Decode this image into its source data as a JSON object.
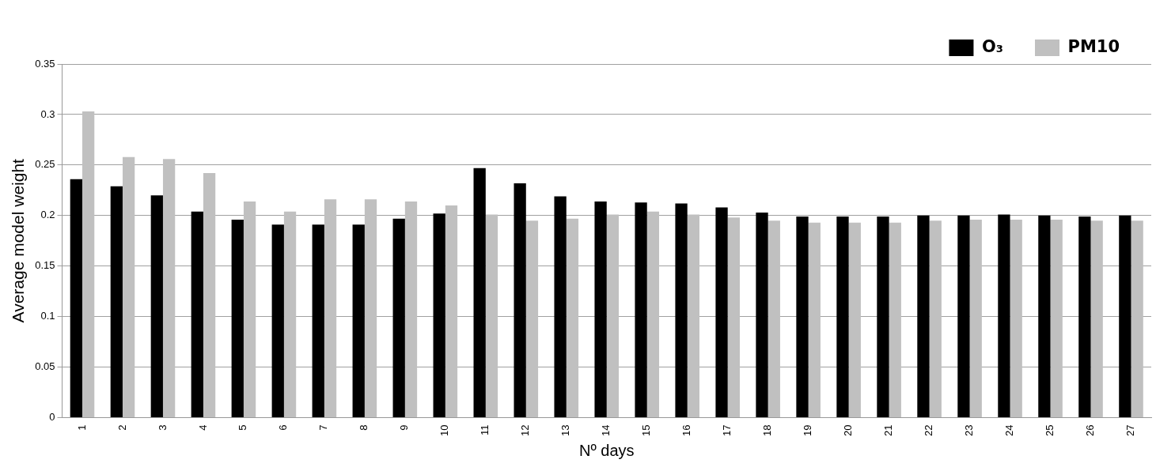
{
  "chart_data": {
    "type": "bar",
    "xlabel": "Nº days",
    "ylabel": "Average model weight",
    "categories": [
      "1",
      "2",
      "3",
      "4",
      "5",
      "6",
      "7",
      "8",
      "9",
      "10",
      "11",
      "12",
      "13",
      "14",
      "15",
      "16",
      "17",
      "18",
      "19",
      "20",
      "21",
      "22",
      "23",
      "24",
      "25",
      "26",
      "27"
    ],
    "series": [
      {
        "name": "O₃",
        "color": "#000000",
        "values": [
          0.236,
          0.229,
          0.22,
          0.204,
          0.196,
          0.191,
          0.191,
          0.191,
          0.197,
          0.202,
          0.247,
          0.232,
          0.219,
          0.214,
          0.213,
          0.212,
          0.208,
          0.203,
          0.199,
          0.199,
          0.199,
          0.2,
          0.2,
          0.201,
          0.2,
          0.199,
          0.2
        ]
      },
      {
        "name": "PM10",
        "color": "#c0c0c0",
        "values": [
          0.303,
          0.258,
          0.256,
          0.242,
          0.214,
          0.204,
          0.216,
          0.216,
          0.214,
          0.21,
          0.201,
          0.195,
          0.197,
          0.201,
          0.204,
          0.201,
          0.198,
          0.195,
          0.193,
          0.193,
          0.193,
          0.195,
          0.196,
          0.196,
          0.196,
          0.195,
          0.195
        ]
      }
    ],
    "ylim": [
      0,
      0.35
    ],
    "yticks": [
      0,
      0.05,
      0.1,
      0.15,
      0.2,
      0.25,
      0.3,
      0.35
    ],
    "grid": "y",
    "legend": "top right"
  }
}
